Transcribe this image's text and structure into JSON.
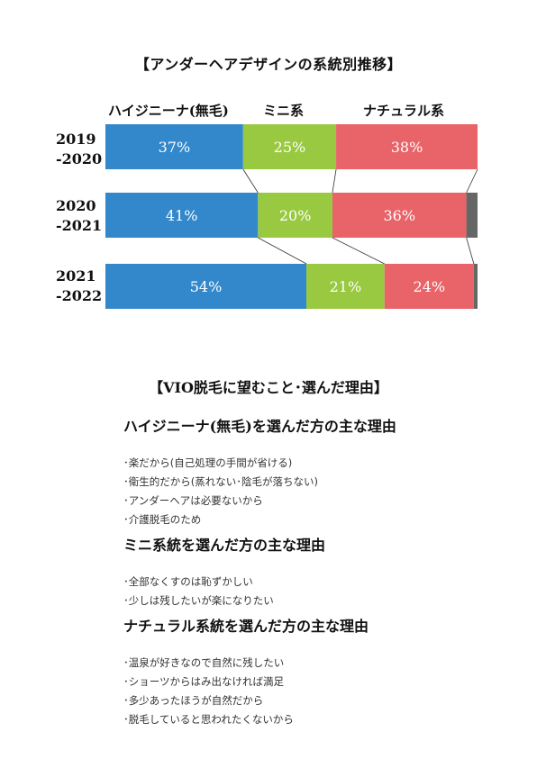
{
  "chart_data": {
    "type": "bar",
    "orientation": "horizontal",
    "stacked": "percent",
    "title": "【アンダーヘアデザインの系統別推移】",
    "categories": [
      "2019\n-2020",
      "2020\n-2021",
      "2021\n-2022"
    ],
    "category_lines": [
      [
        "2019",
        "-2020"
      ],
      [
        "2020",
        "-2021"
      ],
      [
        "2021",
        "-2022"
      ]
    ],
    "series": [
      {
        "name": "ハイジニーナ(無毛)",
        "color": "#3388cc",
        "values": [
          37,
          41,
          54
        ],
        "labels": [
          "37%",
          "41%",
          "54%"
        ]
      },
      {
        "name": "ミニ系",
        "color": "#99c940",
        "values": [
          25,
          20,
          21
        ],
        "labels": [
          "25%",
          "20%",
          "21%"
        ]
      },
      {
        "name": "ナチュラル系",
        "color": "#e86468",
        "values": [
          38,
          36,
          24
        ],
        "labels": [
          "38%",
          "36%",
          "24%"
        ]
      },
      {
        "name": "",
        "color": "#666666",
        "values": [
          0,
          3,
          1
        ],
        "labels": [
          "",
          "",
          ""
        ]
      }
    ],
    "connector_lines": true,
    "legend_position": "top",
    "grid": false
  },
  "vio": {
    "title": "【VIO脱毛に望むこと･選んだ理由】",
    "sections": [
      {
        "heading": "ハイジニーナ(無毛)を選んだ方の主な理由",
        "items": [
          "･楽だから(自己処理の手間が省ける)",
          "･衛生的だから(蒸れない･陰毛が落ちない)",
          "･アンダーヘアは必要ないから",
          "･介護脱毛のため"
        ]
      },
      {
        "heading": "ミニ系統を選んだ方の主な理由",
        "items": [
          "･全部なくすのは恥ずかしい",
          "･少しは残したいが楽になりたい"
        ]
      },
      {
        "heading": "ナチュラル系統を選んだ方の主な理由",
        "items": [
          "･温泉が好きなので自然に残したい",
          "･ショーツからはみ出なければ満足",
          "･多少あったほうが自然だから",
          "･脱毛していると思われたくないから"
        ]
      }
    ]
  }
}
